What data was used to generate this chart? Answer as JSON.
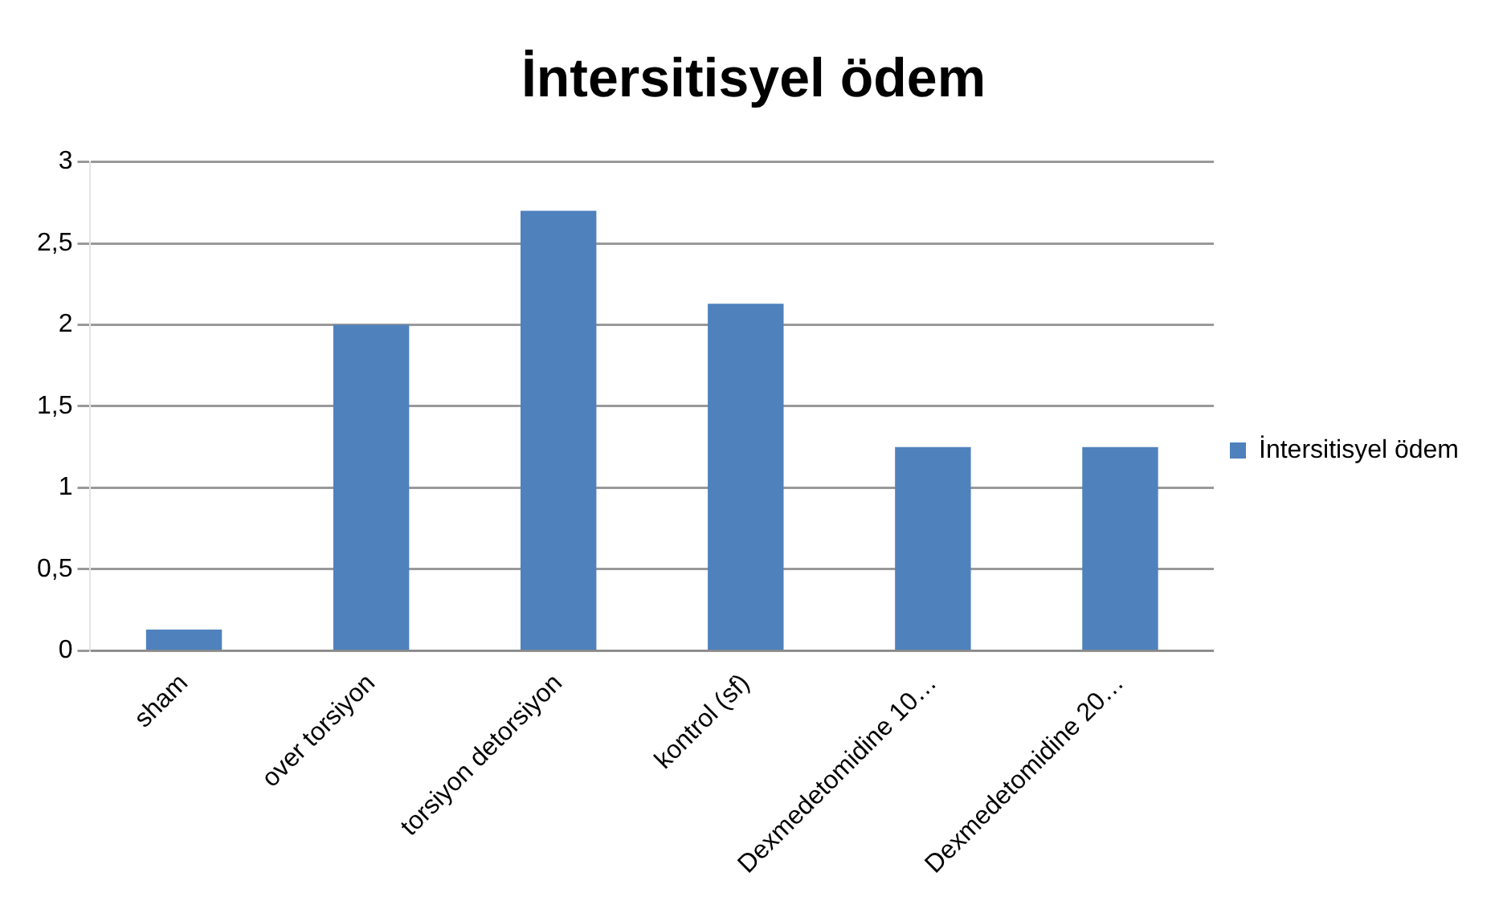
{
  "chart_data": {
    "type": "bar",
    "title": "İntersitisyel ödem",
    "categories": [
      "sham",
      "over torsiyon",
      "torsiyon detorsiyon",
      "kontrol (sf)",
      "Dexmedetomidine 10…",
      "Dexmedetomidine 20…"
    ],
    "series": [
      {
        "name": "İntersitisyel ödem",
        "color": "#4f81bd",
        "values": [
          0.13,
          2,
          2.7,
          2.13,
          1.25,
          1.25
        ]
      }
    ],
    "ylim": [
      0,
      3
    ],
    "yticks": [
      0,
      {
        "value": 0.5,
        "label": "0,5"
      },
      1,
      {
        "value": 1.5,
        "label": "1,5"
      },
      2,
      {
        "value": 2.5,
        "label": "2,5"
      },
      3
    ],
    "grid": "y",
    "legend": "right"
  }
}
